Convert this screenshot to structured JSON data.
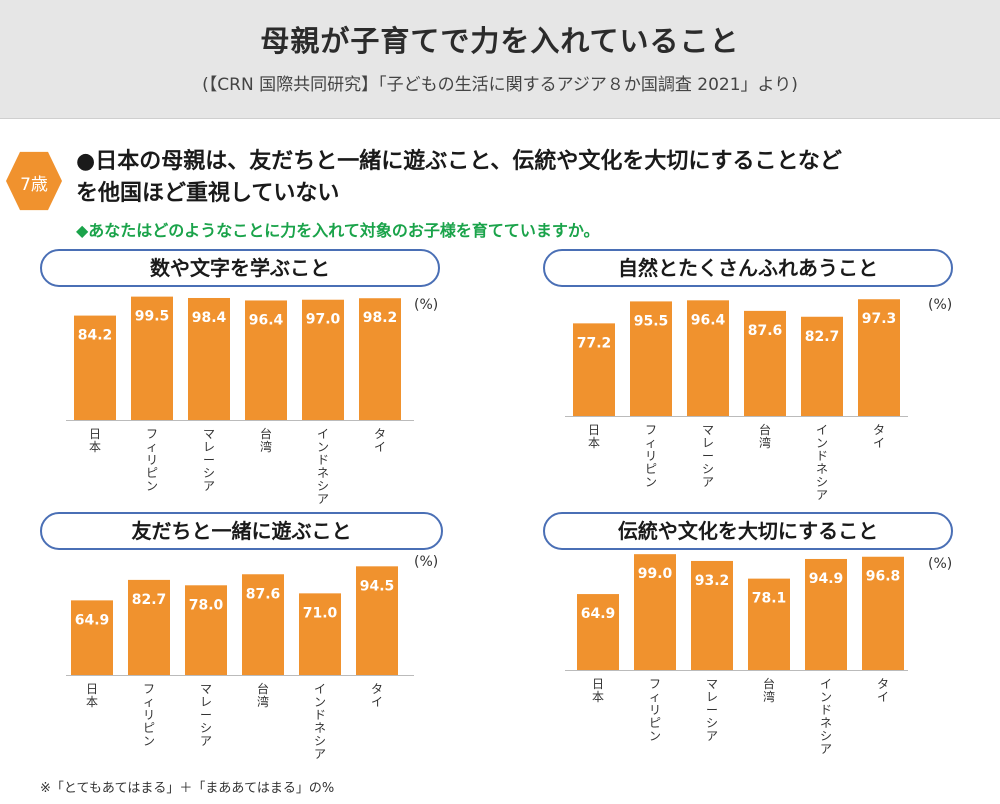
{
  "header": {
    "title": "母親が子育てで力を入れていること",
    "subtitle": "(【CRN 国際共同研究】「子どもの生活に関するアジア８か国調査 2021」より)"
  },
  "badge": "7歳",
  "headline": {
    "line1": "●日本の母親は、友だちと一緒に遊ぶこと、伝統や文化を大切にすることなど",
    "line2": "を他国ほど重視していない"
  },
  "question": "◆あなたはどのようなことに力を入れて対象のお子様を育てていますか。",
  "colors": {
    "bar": "#f0922e",
    "pill_border": "#4a6fb5",
    "question": "#1aa34a",
    "badge": "#f0922e"
  },
  "chart_data": [
    {
      "type": "bar",
      "title": "数や文字を学ぶこと",
      "unit": "(%)",
      "categories": [
        "日本",
        "フィリピン",
        "マレーシア",
        "台湾",
        "インドネシア",
        "タイ"
      ],
      "values": [
        84.2,
        99.5,
        98.4,
        96.4,
        97.0,
        98.2
      ],
      "labels": [
        "84.2",
        "99.5",
        "98.4",
        "96.4",
        "97.0",
        "98.2"
      ],
      "ylim": [
        0,
        100
      ]
    },
    {
      "type": "bar",
      "title": "自然とたくさんふれあうこと",
      "unit": "(%)",
      "categories": [
        "日本",
        "フィリピン",
        "マレーシア",
        "台湾",
        "インドネシア",
        "タイ"
      ],
      "values": [
        77.2,
        95.5,
        96.4,
        87.6,
        82.7,
        97.3
      ],
      "labels": [
        "77.2",
        "95.5",
        "96.4",
        "87.6",
        "82.7",
        "97.3"
      ],
      "ylim": [
        0,
        100
      ]
    },
    {
      "type": "bar",
      "title": "友だちと一緒に遊ぶこと",
      "unit": "(%)",
      "categories": [
        "日本",
        "フィリピン",
        "マレーシア",
        "台湾",
        "インドネシア",
        "タイ"
      ],
      "values": [
        64.9,
        82.7,
        78.0,
        87.6,
        71.0,
        94.5
      ],
      "labels": [
        "64.9",
        "82.7",
        "78.0",
        "87.6",
        "71.0",
        "94.5"
      ],
      "ylim": [
        0,
        100
      ]
    },
    {
      "type": "bar",
      "title": "伝統や文化を大切にすること",
      "unit": "(%)",
      "categories": [
        "日本",
        "フィリピン",
        "マレーシア",
        "台湾",
        "インドネシア",
        "タイ"
      ],
      "values": [
        64.9,
        99.0,
        93.2,
        78.1,
        94.9,
        96.8
      ],
      "labels": [
        "64.9",
        "99.0",
        "93.2",
        "78.1",
        "94.9",
        "96.8"
      ],
      "ylim": [
        0,
        100
      ]
    }
  ],
  "footnote": "※「とてもあてはまる」＋「まああてはまる」の%"
}
